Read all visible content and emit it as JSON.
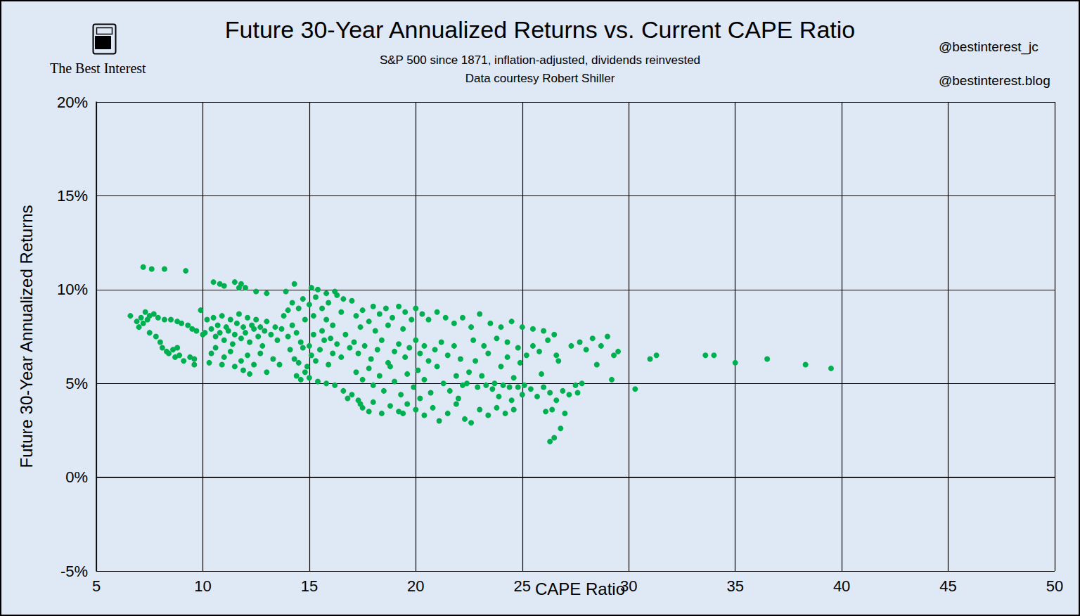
{
  "chart_data": {
    "type": "scatter",
    "title": "Future 30-Year Annualized Returns vs. Current CAPE Ratio",
    "subtitle": "S&P 500 since 1871, inflation-adjusted, dividends reinvested",
    "source": "Data courtesy Robert Shiller",
    "brand": "The Best Interest",
    "handles": [
      "@bestinterest_jc",
      "@bestinterest.blog"
    ],
    "x_label": "CAPE Ratio",
    "y_label": "Future 30-Year Annualized Returns",
    "color": "#00b050",
    "marker": "circle",
    "grid": true,
    "xlim": [
      5,
      50
    ],
    "xticks": [
      5,
      10,
      15,
      20,
      25,
      30,
      35,
      40,
      45,
      50
    ],
    "ylim": [
      -5,
      20
    ],
    "yticks": [
      {
        "value": -5,
        "label": "-5%"
      },
      {
        "value": 0,
        "label": "0%"
      },
      {
        "value": 5,
        "label": "5%"
      },
      {
        "value": 10,
        "label": "10%"
      },
      {
        "value": 15,
        "label": "15%"
      },
      {
        "value": 20,
        "label": "20%"
      }
    ],
    "x": [
      7.2,
      7.6,
      8.2,
      9.2,
      6.6,
      6.9,
      7.0,
      7.1,
      7.2,
      7.3,
      7.4,
      7.5,
      7.7,
      7.9,
      8.2,
      8.5,
      8.8,
      9.0,
      9.3,
      9.5,
      9.7,
      9.9,
      10.1,
      7.5,
      7.8,
      8.0,
      8.3,
      8.1,
      8.4,
      8.6,
      8.7,
      8.9,
      8.8,
      9.1,
      9.4,
      9.6,
      9.6,
      10.0,
      10.3,
      10.5,
      10.8,
      11.0,
      11.5,
      11.7,
      11.8,
      12.0,
      12.5,
      13.0,
      13.9,
      14.3,
      15.1,
      15.4,
      15.8,
      16.2,
      16.6,
      17.0,
      10.2,
      10.4,
      10.5,
      10.6,
      10.7,
      10.8,
      10.9,
      11.0,
      11.1,
      11.2,
      11.3,
      11.4,
      11.5,
      11.6,
      11.7,
      11.8,
      11.9,
      12.0,
      12.1,
      12.2,
      12.3,
      12.4,
      12.5,
      12.6,
      12.7,
      12.8,
      12.9,
      13.0,
      13.2,
      13.4,
      13.5,
      13.7,
      13.8,
      14.0,
      14.2,
      14.4,
      14.6,
      14.8,
      15.0,
      10.4,
      10.6,
      11.0,
      11.3,
      11.5,
      11.8,
      12.1,
      12.4,
      12.7,
      13.0,
      13.3,
      13.6,
      10.9,
      11.9,
      12.2,
      14.2,
      14.5,
      14.7,
      15.0,
      15.3,
      15.6,
      15.9,
      16.3,
      16.5,
      14.0,
      15.2,
      15.8,
      16.1,
      14.1,
      14.3,
      14.5,
      14.7,
      14.9,
      15.1,
      15.3,
      15.5,
      15.7,
      15.9,
      16.1,
      16.3,
      16.5,
      16.7,
      16.9,
      15.2,
      15.6,
      16.0,
      14.4,
      14.6,
      14.8,
      15.0,
      15.4,
      15.8,
      16.2,
      16.6,
      17.0,
      17.3,
      17.5,
      17.8,
      17.4,
      16.8,
      17.2,
      17.5,
      17.8,
      18.0,
      18.3,
      18.6,
      18.9,
      19.2,
      19.5,
      19.8,
      17.4,
      18.1,
      18.7,
      19.4,
      20.0,
      20.3,
      20.6,
      21.0,
      21.4,
      21.8,
      22.2,
      22.6,
      23.0,
      23.5,
      24.0,
      24.5,
      25.0,
      25.5,
      26.0,
      26.5,
      17.1,
      17.3,
      17.6,
      17.9,
      18.2,
      18.4,
      18.7,
      19.0,
      19.2,
      19.5,
      19.7,
      20.0,
      20.2,
      20.4,
      20.6,
      20.9,
      21.2,
      21.5,
      21.8,
      22.1,
      17.2,
      17.5,
      17.8,
      18.0,
      18.3,
      18.5,
      18.8,
      19.0,
      19.3,
      19.6,
      19.9,
      20.1,
      20.4,
      20.7,
      21.0,
      21.3,
      21.6,
      21.9,
      22.2,
      22.5,
      18.0,
      18.4,
      18.8,
      19.2,
      19.6,
      20.0,
      20.4,
      20.8,
      21.1,
      21.5,
      21.9,
      22.3,
      22.6,
      23.0,
      23.4,
      23.8,
      24.2,
      24.6,
      19.4,
      20.2,
      22.8,
      23.1,
      23.4,
      23.7,
      24.0,
      24.3,
      24.6,
      24.9,
      22.4,
      22.9,
      23.3,
      23.6,
      24.1,
      24.4,
      24.8,
      25.1,
      22.7,
      23.2,
      23.8,
      24.3,
      24.8,
      25.2,
      25.5,
      25.8,
      26.2,
      26.6,
      23.9,
      24.5,
      25.0,
      22.0,
      25.4,
      25.7,
      26.0,
      26.3,
      26.6,
      26.9,
      27.2,
      27.5,
      27.8,
      27.6,
      26.1,
      26.4,
      27.0,
      26.8,
      26.5,
      26.3,
      25.9,
      26.7,
      27.3,
      27.7,
      28.0,
      28.3,
      28.7,
      29.0,
      29.3,
      29.5,
      28.5,
      29.2,
      30.3,
      31.3,
      31.0,
      33.6,
      34.0,
      35.0,
      36.5,
      38.3,
      39.5
    ],
    "values": [
      11.2,
      11.1,
      11.1,
      11.0,
      8.6,
      8.3,
      8.0,
      8.5,
      8.2,
      8.8,
      8.4,
      8.6,
      8.7,
      8.5,
      8.4,
      8.4,
      8.3,
      8.2,
      8.1,
      7.9,
      7.8,
      8.9,
      7.7,
      7.7,
      7.5,
      7.2,
      6.7,
      6.9,
      6.6,
      6.8,
      6.4,
      6.5,
      6.9,
      6.2,
      6.4,
      6.0,
      6.3,
      7.6,
      6.1,
      10.4,
      10.3,
      10.2,
      10.4,
      10.1,
      10.3,
      10.1,
      9.9,
      9.8,
      9.9,
      10.3,
      10.1,
      10.0,
      9.8,
      9.9,
      9.5,
      9.4,
      8.4,
      7.9,
      8.5,
      7.5,
      8.1,
      7.7,
      8.6,
      7.3,
      8.0,
      7.8,
      8.4,
      7.1,
      7.6,
      8.2,
      8.7,
      7.4,
      8.0,
      7.7,
      8.5,
      7.2,
      8.1,
      7.9,
      8.4,
      7.5,
      8.0,
      7.0,
      7.8,
      8.3,
      7.6,
      8.0,
      7.3,
      7.9,
      8.6,
      7.5,
      8.1,
      7.7,
      7.2,
      8.4,
      7.0,
      6.6,
      6.9,
      6.4,
      6.7,
      5.9,
      6.2,
      6.5,
      6.0,
      6.6,
      5.6,
      6.3,
      6.0,
      6.0,
      5.7,
      5.5,
      9.3,
      9.0,
      9.5,
      9.2,
      9.6,
      9.0,
      9.3,
      9.7,
      8.8,
      8.9,
      8.6,
      8.4,
      8.1,
      6.8,
      6.3,
      6.1,
      6.9,
      5.9,
      6.5,
      6.2,
      6.8,
      7.3,
      6.0,
      6.6,
      7.1,
      6.4,
      7.6,
      6.9,
      7.6,
      7.8,
      7.4,
      5.4,
      5.2,
      5.6,
      5.3,
      5.1,
      5.0,
      4.9,
      4.6,
      4.4,
      4.1,
      3.7,
      3.5,
      3.9,
      4.2,
      8.6,
      8.9,
      8.3,
      9.1,
      8.7,
      9.0,
      8.5,
      9.1,
      8.8,
      8.4,
      8.0,
      7.8,
      8.1,
      7.9,
      9.0,
      8.7,
      8.4,
      8.8,
      8.5,
      8.2,
      8.5,
      8.0,
      8.7,
      8.2,
      8.0,
      8.3,
      8.0,
      7.9,
      7.8,
      7.6,
      7.2,
      6.6,
      7.0,
      6.3,
      6.8,
      7.3,
      6.1,
      6.7,
      7.1,
      6.4,
      6.9,
      7.3,
      6.6,
      7.0,
      6.2,
      6.8,
      7.2,
      6.5,
      7.0,
      6.3,
      5.6,
      5.2,
      5.8,
      4.9,
      5.4,
      4.6,
      5.9,
      5.1,
      4.4,
      5.5,
      4.8,
      5.7,
      5.2,
      4.5,
      5.9,
      5.0,
      4.6,
      5.4,
      4.9,
      5.6,
      4.0,
      3.4,
      3.8,
      3.5,
      3.9,
      3.6,
      3.3,
      3.7,
      3.0,
      3.4,
      3.9,
      3.1,
      2.9,
      3.6,
      3.3,
      3.7,
      3.4,
      3.6,
      3.4,
      4.2,
      6.2,
      5.4,
      6.6,
      5.0,
      5.9,
      6.4,
      5.3,
      6.1,
      5.0,
      4.8,
      4.9,
      4.7,
      4.9,
      4.8,
      4.8,
      4.9,
      7.3,
      7.0,
      7.4,
      7.2,
      6.9,
      6.5,
      7.0,
      6.7,
      7.3,
      6.5,
      4.3,
      4.1,
      4.4,
      4.2,
      4.7,
      4.3,
      4.8,
      4.5,
      4.1,
      4.6,
      4.4,
      4.9,
      5.0,
      4.5,
      3.5,
      3.6,
      3.4,
      2.6,
      2.1,
      1.9,
      5.5,
      6.2,
      7.0,
      7.2,
      6.8,
      7.4,
      7.0,
      7.5,
      6.5,
      6.7,
      6.0,
      5.2,
      4.7,
      6.5,
      6.3,
      6.5,
      6.5,
      6.1,
      6.3,
      6.0,
      5.8
    ]
  }
}
